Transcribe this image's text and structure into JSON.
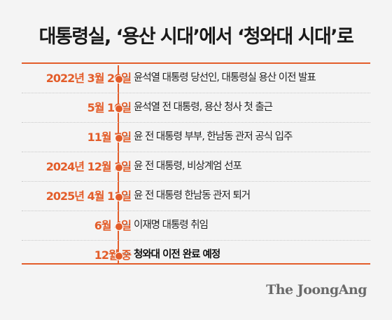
{
  "title": "대통령실, ‘용산 시대’에서 ‘청와대 시대’로",
  "leader": "···",
  "colors": {
    "accent": "#e35d2a",
    "background": "#f4f4f4",
    "text": "#222222"
  },
  "timeline": [
    {
      "date": "2022년 3월 20일",
      "event": "윤석열 대통령 당선인, 대통령실 용산 이전 발표"
    },
    {
      "date": "5월 10일",
      "event": "윤석열 전 대통령, 용산 청사 첫 출근"
    },
    {
      "date": "11월 7일",
      "event": "윤 전 대통령 부부, 한남동 관저 공식 입주"
    },
    {
      "date": "2024년 12월 3일",
      "event": "윤 전 대통령, 비상계엄 선포"
    },
    {
      "date": "2025년 4월 11일",
      "event": "윤 전 대통령 한남동 관저 퇴거"
    },
    {
      "date": "6월 4일",
      "event": "이재명 대통령 취임"
    },
    {
      "date": "12월 중",
      "event": "청와대 이전 완료 예정"
    }
  ],
  "logo": "The JoongAng"
}
